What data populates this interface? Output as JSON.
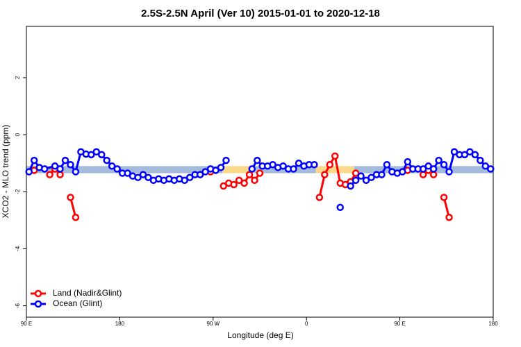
{
  "chart_data": {
    "type": "line",
    "title": "2.5S-2.5N April (Ver 10)   2015-01-01 to 2020-12-18",
    "x_label": "Longitude (deg E)",
    "y_label": "XCO2 - MLO trend (ppm)",
    "xlim": [
      90,
      540
    ],
    "ylim": [
      -6.4,
      3.8
    ],
    "xticks": [
      {
        "value": 90,
        "label": "90 E"
      },
      {
        "value": 180,
        "label": "180"
      },
      {
        "value": 270,
        "label": "90 W"
      },
      {
        "value": 360,
        "label": "0"
      },
      {
        "value": 450,
        "label": "90 E"
      },
      {
        "value": 540,
        "label": "180"
      }
    ],
    "yticks": [
      -6,
      -4,
      -2,
      0,
      2
    ],
    "grid": false,
    "legend": "bottom-left",
    "bands": [
      {
        "xlim": [
          90,
          279
        ],
        "ylim": [
          -1.35,
          -1.1
        ],
        "color": "#a5bbdc"
      },
      {
        "xlim": [
          279,
          309
        ],
        "ylim": [
          -1.35,
          -1.1
        ],
        "color": "#fcd98a"
      },
      {
        "xlim": [
          309,
          369
        ],
        "ylim": [
          -1.35,
          -1.1
        ],
        "color": "#a5bbdc"
      },
      {
        "xlim": [
          369,
          406
        ],
        "ylim": [
          -1.35,
          -1.1
        ],
        "color": "#fcd98a"
      },
      {
        "xlim": [
          406,
          540
        ],
        "ylim": [
          -1.35,
          -1.1
        ],
        "color": "#a5bbdc"
      }
    ],
    "series": [
      {
        "name": "Land (Nadir&Glint)",
        "color": "#ff0000",
        "x": [
          97.5,
          null,
          112.5,
          117.5,
          122.5,
          null,
          132.5,
          137.5,
          null,
          267.5,
          null,
          280,
          285,
          290,
          295,
          300,
          305,
          310,
          315,
          null,
          372.5,
          377.5,
          382.5,
          387.5,
          392.5,
          397.5,
          402.5,
          407.5,
          null,
          457.5,
          null,
          472.5,
          477.5,
          482.5,
          null,
          492.5,
          497.5
        ],
        "values": [
          -1.25,
          null,
          -1.4,
          -1.2,
          -1.4,
          null,
          -2.2,
          -2.9,
          null,
          -1.3,
          null,
          -1.8,
          -1.7,
          -1.75,
          -1.6,
          -1.7,
          -1.4,
          -1.6,
          -1.35,
          null,
          -2.2,
          -1.4,
          -1.05,
          -0.75,
          -1.7,
          -1.75,
          -1.65,
          -1.35,
          null,
          -1.25,
          null,
          -1.4,
          -1.25,
          -1.4,
          null,
          -2.2,
          -2.9
        ]
      },
      {
        "name": "Ocean (Glint)",
        "color": "#0000ff",
        "x": [
          92.5,
          97.5,
          102.5,
          107.5,
          117.5,
          122.5,
          127.5,
          132.5,
          137.5,
          142.5,
          147.5,
          152.5,
          157.5,
          162.5,
          167.5,
          172.5,
          177.5,
          182.5,
          187.5,
          192.5,
          197.5,
          202.5,
          207.5,
          212.5,
          217.5,
          222.5,
          227.5,
          232.5,
          237.5,
          242.5,
          247.5,
          252.5,
          257.5,
          262.5,
          267.5,
          272.5,
          277.5,
          282.5,
          null,
          307.5,
          312.5,
          317.5,
          322.5,
          327.5,
          332.5,
          337.5,
          342.5,
          347.5,
          352.5,
          357.5,
          362.5,
          367.5,
          null,
          392.5,
          null,
          402.5,
          407.5,
          412.5,
          417.5,
          422.5,
          427.5,
          432.5,
          437.5,
          442.5,
          447.5,
          452.5,
          457.5,
          462.5,
          467.5,
          472.5,
          477.5,
          482.5,
          487.5,
          492.5,
          497.5,
          502.5,
          507.5,
          512.5,
          517.5,
          522.5,
          527.5,
          532.5,
          537.5
        ],
        "values": [
          -1.3,
          -0.9,
          -1.15,
          -1.2,
          -1.1,
          -1.2,
          -0.9,
          -1.05,
          -1.3,
          -0.6,
          -0.68,
          -0.7,
          -0.6,
          -0.7,
          -0.9,
          -1.1,
          -1.2,
          -1.35,
          -1.35,
          -1.45,
          -1.5,
          -1.4,
          -1.5,
          -1.6,
          -1.55,
          -1.6,
          -1.55,
          -1.6,
          -1.55,
          -1.6,
          -1.5,
          -1.4,
          -1.4,
          -1.3,
          -1.2,
          -1.25,
          -1.15,
          -0.9,
          null,
          -1.2,
          -0.9,
          -1.1,
          -1.1,
          -1.05,
          -1.15,
          -1.1,
          -1.2,
          -1.2,
          -1.0,
          -1.1,
          -1.05,
          -1.05,
          null,
          -2.55,
          null,
          -1.8,
          -1.6,
          -1.45,
          -1.6,
          -1.5,
          -1.4,
          -1.4,
          -1.05,
          -1.3,
          -1.35,
          -1.3,
          -0.95,
          -1.2,
          -1.2,
          -1.2,
          -1.1,
          -1.2,
          -0.9,
          -1.05,
          -1.3,
          -0.6,
          -0.7,
          -0.7,
          -0.6,
          -0.7,
          -0.9,
          -1.1,
          -1.2
        ]
      }
    ]
  }
}
